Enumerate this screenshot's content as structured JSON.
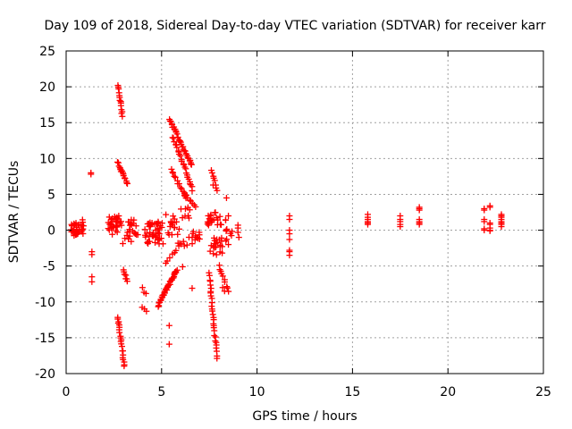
{
  "chart_data": {
    "type": "scatter",
    "title": "Day 109 of 2018, Sidereal Day-to-day VTEC variation (SDTVAR) for receiver karr",
    "xlabel": "GPS time / hours",
    "ylabel": "SDTVAR / TECUs",
    "xlim": [
      0,
      25
    ],
    "ylim": [
      -20,
      25
    ],
    "xticks": [
      "0",
      "5",
      "10",
      "15",
      "20",
      "25"
    ],
    "yticks": [
      "-20",
      "-15",
      "-10",
      "-5",
      "0",
      "5",
      "10",
      "15",
      "20",
      "25"
    ],
    "grid": true,
    "marker": "plus",
    "color": "#ff0000",
    "clusters": [
      {
        "x": [
          0.2,
          0.7
        ],
        "y": [
          -0.8,
          1.0
        ],
        "n": 30
      },
      {
        "x": [
          0.75,
          0.95
        ],
        "y": [
          -0.5,
          1.8
        ],
        "n": 10
      },
      {
        "x": [
          2.2,
          2.9
        ],
        "y": [
          -0.6,
          2.0
        ],
        "n": 34
      },
      {
        "x": [
          3.2,
          3.8
        ],
        "y": [
          -1.6,
          1.5
        ],
        "n": 18
      },
      {
        "x": [
          4.1,
          5.1
        ],
        "y": [
          -2.0,
          1.2
        ],
        "n": 46
      },
      {
        "x": [
          5.2,
          5.8
        ],
        "y": [
          -1.0,
          2.2
        ],
        "n": 14
      },
      {
        "x": [
          5.8,
          7.0
        ],
        "y": [
          -2.2,
          0.2
        ],
        "n": 20
      },
      {
        "x": [
          6.0,
          6.6
        ],
        "y": [
          1.6,
          3.2
        ],
        "n": 8
      },
      {
        "x": [
          7.4,
          8.2
        ],
        "y": [
          0.6,
          2.6
        ],
        "n": 20
      },
      {
        "x": [
          7.5,
          8.2
        ],
        "y": [
          -3.5,
          -1.0
        ],
        "n": 22
      },
      {
        "x": [
          8.3,
          8.7
        ],
        "y": [
          -1.5,
          2.0
        ],
        "n": 10
      }
    ],
    "segments": [
      {
        "x": [
          2.7,
          2.95
        ],
        "y": [
          20.2,
          16.0
        ],
        "n": 14
      },
      {
        "x": [
          2.7,
          3.2
        ],
        "y": [
          9.5,
          6.5
        ],
        "n": 16
      },
      {
        "x": [
          2.7,
          3.05
        ],
        "y": [
          -12.0,
          -19.0
        ],
        "n": 22
      },
      {
        "x": [
          3.0,
          3.2
        ],
        "y": [
          -5.5,
          -7.2
        ],
        "n": 7
      },
      {
        "x": [
          3.0,
          3.4
        ],
        "y": [
          -1.8,
          0.6
        ],
        "n": 6
      },
      {
        "x": [
          4.8,
          5.8
        ],
        "y": [
          -10.5,
          -5.5
        ],
        "n": 40
      },
      {
        "x": [
          5.4,
          6.6
        ],
        "y": [
          15.5,
          9.0
        ],
        "n": 34
      },
      {
        "x": [
          5.6,
          6.6
        ],
        "y": [
          13.0,
          6.0
        ],
        "n": 24
      },
      {
        "x": [
          5.5,
          6.3
        ],
        "y": [
          8.5,
          4.5
        ],
        "n": 14
      },
      {
        "x": [
          6.2,
          6.8
        ],
        "y": [
          5.0,
          3.2
        ],
        "n": 8
      },
      {
        "x": [
          5.2,
          6.0
        ],
        "y": [
          -4.5,
          -2.0
        ],
        "n": 8
      },
      {
        "x": [
          7.5,
          7.9
        ],
        "y": [
          -6.0,
          -17.8
        ],
        "n": 30
      },
      {
        "x": [
          7.6,
          7.9
        ],
        "y": [
          8.5,
          5.5
        ],
        "n": 8
      },
      {
        "x": [
          8.0,
          8.5
        ],
        "y": [
          -5.0,
          -8.5
        ],
        "n": 10
      },
      {
        "x": [
          4.0,
          4.2
        ],
        "y": [
          -8.0,
          -9.0
        ],
        "n": 3
      },
      {
        "x": [
          4.0,
          4.2
        ],
        "y": [
          -10.8,
          -11.3
        ],
        "n": 3
      }
    ],
    "points": [
      {
        "x": 1.3,
        "y": 8.0
      },
      {
        "x": 1.3,
        "y": 7.8
      },
      {
        "x": 1.35,
        "y": -3.0
      },
      {
        "x": 1.35,
        "y": -3.4
      },
      {
        "x": 1.35,
        "y": -6.5
      },
      {
        "x": 1.35,
        "y": -7.2
      },
      {
        "x": 5.4,
        "y": -13.3
      },
      {
        "x": 5.4,
        "y": -15.9
      },
      {
        "x": 6.1,
        "y": -5.1
      },
      {
        "x": 6.6,
        "y": -8.1
      },
      {
        "x": 6.2,
        "y": 5.2
      },
      {
        "x": 6.6,
        "y": 5.5
      },
      {
        "x": 7.7,
        "y": 6.3
      },
      {
        "x": 7.5,
        "y": 1.6
      },
      {
        "x": 8.2,
        "y": -8.0
      },
      {
        "x": 8.3,
        "y": -8.5
      },
      {
        "x": 8.4,
        "y": 4.5
      },
      {
        "x": 8.5,
        "y": 2.0
      },
      {
        "x": 8.5,
        "y": -2.0
      },
      {
        "x": 9.0,
        "y": 0.7
      },
      {
        "x": 9.0,
        "y": 0.3
      },
      {
        "x": 9.0,
        "y": -0.3
      },
      {
        "x": 9.05,
        "y": -1.0
      }
    ],
    "columns": [
      {
        "x": 11.7,
        "y": [
          2.0,
          1.5,
          0.0,
          -0.5,
          -1.3,
          -2.8,
          -3.0,
          -3.5
        ]
      },
      {
        "x": 15.8,
        "y": [
          2.2,
          1.8,
          1.5,
          1.2,
          1.0,
          0.8
        ]
      },
      {
        "x": 17.5,
        "y": [
          2.0,
          1.5,
          1.2,
          0.8,
          0.5
        ]
      },
      {
        "x": 18.5,
        "y": [
          3.2,
          3.0,
          2.8,
          1.5,
          1.2,
          1.0,
          0.8
        ]
      },
      {
        "x": 21.9,
        "y": [
          3.0,
          2.8,
          1.5,
          1.2,
          0.2,
          0.0
        ]
      },
      {
        "x": 22.2,
        "y": [
          3.4,
          3.2,
          1.0,
          0.8,
          0.3,
          0.0,
          -0.1
        ]
      },
      {
        "x": 22.8,
        "y": [
          2.2,
          2.0,
          1.8,
          1.5,
          1.2,
          1.0,
          0.8,
          0.5
        ]
      }
    ]
  }
}
